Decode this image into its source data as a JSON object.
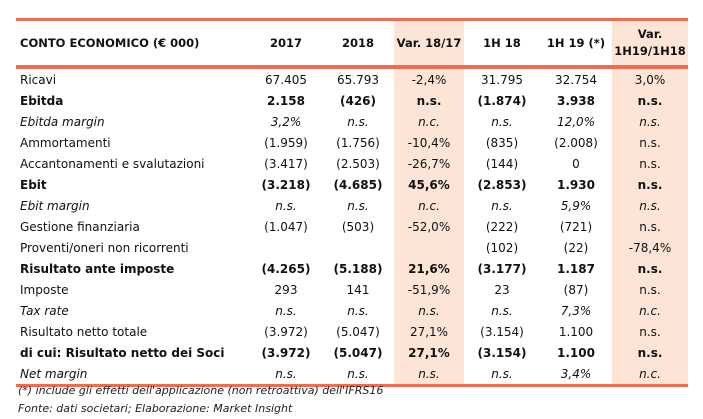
{
  "header": [
    "CONTO ECONOMICO (€ 000)",
    "2017",
    "2018",
    "Var. 18/17",
    "1H 18",
    "1H 19 (*)",
    "Var. 1H19/1H18"
  ],
  "rows": [
    {
      "label": "Ricavi",
      "style": "",
      "values": [
        "67.405",
        "65.793",
        "-2,4%",
        "31.795",
        "32.754",
        "3,0%"
      ]
    },
    {
      "label": "Ebitda",
      "style": "b",
      "values": [
        "2.158",
        "(426)",
        "n.s.",
        "(1.874)",
        "3.938",
        "n.s."
      ]
    },
    {
      "label": "Ebitda margin",
      "style": "i",
      "values": [
        "3,2%",
        "n.s.",
        "n.c.",
        "n.s.",
        "12,0%",
        "n.s."
      ]
    },
    {
      "label": "Ammortamenti",
      "style": "",
      "values": [
        "(1.959)",
        "(1.756)",
        "-10,4%",
        "(835)",
        "(2.008)",
        "n.s."
      ]
    },
    {
      "label": "Accantonamenti e svalutazioni",
      "style": "",
      "values": [
        "(3.417)",
        "(2.503)",
        "-26,7%",
        "(144)",
        "0",
        "n.s."
      ]
    },
    {
      "label": "Ebit",
      "style": "b",
      "values": [
        "(3.218)",
        "(4.685)",
        "45,6%",
        "(2.853)",
        "1.930",
        "n.s."
      ]
    },
    {
      "label": "Ebit margin",
      "style": "i",
      "values": [
        "n.s.",
        "n.s.",
        "n.c.",
        "n.s.",
        "5,9%",
        "n.s."
      ]
    },
    {
      "label": "Gestione finanziaria",
      "style": "",
      "values": [
        "(1.047)",
        "(503)",
        "-52,0%",
        "(222)",
        "(721)",
        "n.s."
      ]
    },
    {
      "label": "Proventi/oneri non ricorrenti",
      "style": "",
      "values": [
        "",
        "",
        "",
        "(102)",
        "(22)",
        "-78,4%"
      ]
    },
    {
      "label": "Risultato ante imposte",
      "style": "b",
      "values": [
        "(4.265)",
        "(5.188)",
        "21,6%",
        "(3.177)",
        "1.187",
        "n.s."
      ]
    },
    {
      "label": "Imposte",
      "style": "",
      "values": [
        "293",
        "141",
        "-51,9%",
        "23",
        "(87)",
        "n.s."
      ]
    },
    {
      "label": "Tax rate",
      "style": "i",
      "values": [
        "n.s.",
        "n.s.",
        "n.s.",
        "n.s.",
        "7,3%",
        "n.c."
      ]
    },
    {
      "label": "Risultato netto totale",
      "style": "",
      "values": [
        "(3.972)",
        "(5.047)",
        "27,1%",
        "(3.154)",
        "1.100",
        "n.s."
      ]
    },
    {
      "label": "di cui: Risultato netto dei Soci",
      "style": "b",
      "values": [
        "(3.972)",
        "(5.047)",
        "27,1%",
        "(3.154)",
        "1.100",
        "n.s."
      ]
    },
    {
      "label": "Net margin",
      "style": "i",
      "values": [
        "n.s.",
        "n.s.",
        "n.s.",
        "n.s.",
        "3,4%",
        "n.c."
      ]
    }
  ],
  "notes": [
    "(*) include gli effetti dell'applicazione (non retroattiva) dell'IFRS16",
    "Fonte: dati societari; Elaborazione: Market Insight"
  ],
  "colors": {
    "accent": "#f26b50",
    "shade": "#fce5d6"
  }
}
